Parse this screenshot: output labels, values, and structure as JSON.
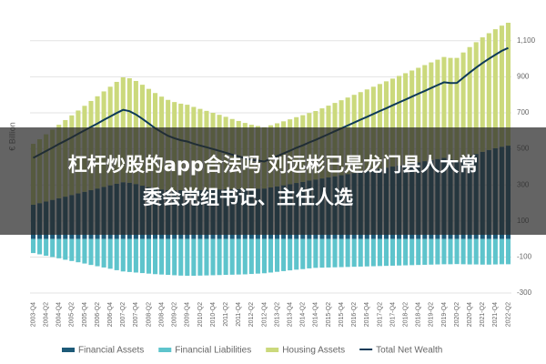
{
  "chart_data": {
    "type": "stacked-bar-line",
    "y_label": "€ Billion",
    "categories": [
      "2003-Q4",
      null,
      "2004-Q2",
      null,
      "2004-Q4",
      null,
      "2005-Q2",
      null,
      "2005-Q4",
      null,
      "2006-Q2",
      null,
      "2006-Q4",
      null,
      "2007-Q2",
      null,
      "2007-Q4",
      null,
      "2008-Q2",
      null,
      "2008-Q4",
      null,
      "2009-Q2",
      null,
      "2009-Q4",
      null,
      "2010-Q2",
      null,
      "2010-Q4",
      null,
      "2011-Q2",
      null,
      "2011-Q4",
      null,
      "2012-Q2",
      null,
      "2012-Q4",
      null,
      "2013-Q2",
      null,
      "2013-Q4",
      null,
      "2014-Q2",
      null,
      "2014-Q4",
      null,
      "2015-Q2",
      null,
      "2015-Q4",
      null,
      "2016-Q2",
      null,
      "2016-Q4",
      null,
      "2017-Q2",
      null,
      "2017-Q4",
      null,
      "2018-Q2",
      null,
      "2018-Q4",
      null,
      "2019-Q2",
      null,
      "2019-Q4",
      null,
      "2020-Q2",
      null,
      "2020-Q4",
      null,
      "2021-Q2",
      null,
      "2021-Q4",
      null,
      "2022-Q2"
    ],
    "series": [
      {
        "name": "Financial Assets",
        "color": "#1d5a78",
        "kind": "bar",
        "values": [
          190,
          199,
          208,
          217,
          226,
          235,
          244,
          253,
          262,
          271,
          280,
          289,
          298,
          307,
          315,
          312,
          305,
          296,
          288,
          280,
          275,
          272,
          270,
          271,
          270,
          271,
          272,
          273,
          274,
          275,
          276,
          276,
          277,
          278,
          278,
          279,
          280,
          286,
          292,
          298,
          304,
          311,
          317,
          324,
          330,
          336,
          342,
          348,
          354,
          360,
          366,
          372,
          378,
          384,
          390,
          396,
          402,
          408,
          414,
          420,
          426,
          432,
          438,
          444,
          450,
          440,
          430,
          445,
          460,
          472,
          484,
          494,
          504,
          512,
          518
        ]
      },
      {
        "name": "Financial Liabilities",
        "color": "#5ec4cc",
        "kind": "bar",
        "values": [
          -78,
          -85,
          -93,
          -100,
          -107,
          -115,
          -122,
          -129,
          -136,
          -144,
          -151,
          -158,
          -165,
          -173,
          -180,
          -183,
          -186,
          -189,
          -192,
          -195,
          -197,
          -199,
          -201,
          -203,
          -204,
          -204,
          -203,
          -202,
          -201,
          -200,
          -199,
          -198,
          -197,
          -196,
          -194,
          -192,
          -190,
          -186,
          -182,
          -178,
          -174,
          -170,
          -167,
          -163,
          -160,
          -159,
          -158,
          -157,
          -156,
          -155,
          -154,
          -153,
          -152,
          -151,
          -150,
          -149,
          -148,
          -147,
          -146,
          -145,
          -144,
          -143,
          -142,
          -141,
          -140,
          -140,
          -139,
          -140,
          -141,
          -141,
          -142,
          -142,
          -141,
          -140,
          -140
        ]
      },
      {
        "name": "Housing Assets",
        "color": "#cbd97c",
        "kind": "bar",
        "values": [
          338,
          355,
          373,
          390,
          408,
          425,
          442,
          460,
          477,
          495,
          512,
          530,
          547,
          565,
          582,
          580,
          572,
          560,
          545,
          530,
          515,
          500,
          490,
          480,
          475,
          462,
          450,
          438,
          426,
          414,
          402,
          390,
          378,
          366,
          356,
          348,
          340,
          345,
          350,
          355,
          360,
          365,
          370,
          375,
          380,
          389,
          398,
          407,
          416,
          425,
          434,
          443,
          452,
          461,
          470,
          479,
          488,
          497,
          506,
          515,
          524,
          533,
          542,
          551,
          560,
          565,
          575,
          590,
          605,
          620,
          635,
          648,
          660,
          672,
          682
        ]
      },
      {
        "name": "Total Net Wealth",
        "color": "#0e3a58",
        "kind": "line",
        "values": [
          450,
          469,
          488,
          507,
          527,
          545,
          564,
          584,
          603,
          622,
          641,
          661,
          680,
          699,
          717,
          709,
          691,
          667,
          641,
          615,
          593,
          573,
          559,
          548,
          541,
          529,
          519,
          509,
          499,
          489,
          479,
          468,
          458,
          448,
          440,
          435,
          430,
          445,
          460,
          475,
          490,
          506,
          520,
          536,
          550,
          566,
          582,
          598,
          614,
          630,
          646,
          662,
          678,
          694,
          710,
          726,
          742,
          758,
          774,
          790,
          806,
          822,
          838,
          854,
          870,
          865,
          866,
          895,
          924,
          951,
          977,
          1000,
          1023,
          1044,
          1060
        ]
      }
    ],
    "ylim": [
      -330,
      1200
    ],
    "yticks": [
      -300,
      -100,
      100,
      300,
      500,
      700,
      900,
      {
        "value": 1100,
        "label": "1,100"
      }
    ],
    "grid": true
  },
  "banner": {
    "lines": [
      "杠杆炒股的app合法吗 刘远彬已是龙门县人大常",
      "委会党组书记、主任人选"
    ]
  }
}
